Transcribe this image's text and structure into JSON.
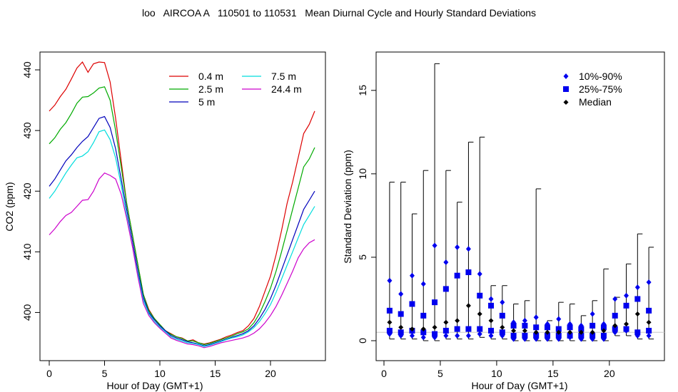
{
  "page": {
    "title": "loo   AIRCOA A   110501 to 110531   Mean Diurnal Cycle and Hourly Standard Deviations"
  },
  "chart_data": [
    {
      "type": "line",
      "xlabel": "Hour of Day (GMT+1)",
      "ylabel": "CO2 (ppm)",
      "xlim": [
        0,
        24
      ],
      "ylim": [
        393,
        442
      ],
      "xticks": [
        0,
        5,
        10,
        15,
        20
      ],
      "yticks": [
        400,
        410,
        420,
        430,
        440
      ],
      "grid": false,
      "legend": "top-right",
      "x": [
        0,
        0.5,
        1,
        1.5,
        2,
        2.5,
        3,
        3.5,
        4,
        4.5,
        5,
        5.5,
        6,
        6.5,
        7,
        7.5,
        8,
        8.5,
        9,
        9.5,
        10,
        10.5,
        11,
        11.5,
        12,
        12.5,
        13,
        13.5,
        14,
        14.5,
        15,
        15.5,
        16,
        16.5,
        17,
        17.5,
        18,
        18.5,
        19,
        19.5,
        20,
        20.5,
        21,
        21.5,
        22,
        22.5,
        23,
        23.5,
        24
      ],
      "series": [
        {
          "name": "0.4 m",
          "color": "#dd0000",
          "values": [
            433.2,
            434.2,
            435.6,
            436.8,
            438.5,
            440.3,
            441.3,
            439.6,
            441.0,
            441.3,
            441.2,
            438.0,
            432.0,
            425.0,
            418.0,
            413.0,
            408.0,
            403.0,
            400.5,
            399.0,
            398.0,
            397.0,
            396.5,
            396.0,
            395.8,
            395.3,
            395.5,
            395.0,
            394.8,
            395.0,
            395.3,
            395.6,
            396.0,
            396.3,
            396.7,
            397.0,
            397.8,
            399.0,
            401.0,
            403.5,
            406.0,
            409.5,
            413.5,
            418.0,
            421.5,
            425.5,
            429.5,
            431.0,
            433.2
          ]
        },
        {
          "name": "2.5 m",
          "color": "#00aa00",
          "values": [
            427.8,
            428.8,
            430.2,
            431.3,
            432.8,
            434.5,
            435.5,
            435.6,
            436.2,
            437.0,
            437.2,
            435.0,
            430.0,
            424.0,
            418.0,
            413.0,
            408.0,
            403.0,
            400.3,
            399.0,
            398.0,
            397.0,
            396.4,
            396.0,
            395.7,
            395.3,
            395.3,
            395.0,
            394.7,
            394.9,
            395.2,
            395.5,
            395.8,
            396.1,
            396.5,
            396.8,
            397.3,
            398.3,
            399.8,
            401.8,
            404.0,
            406.8,
            410.0,
            413.5,
            417.0,
            420.5,
            424.0,
            425.3,
            427.2
          ]
        },
        {
          "name": "5 m",
          "color": "#0000bb",
          "values": [
            420.8,
            422.0,
            423.5,
            425.0,
            426.0,
            427.2,
            428.2,
            429.0,
            430.5,
            432.0,
            432.3,
            430.5,
            427.0,
            422.0,
            417.0,
            412.0,
            407.0,
            402.5,
            400.0,
            398.8,
            397.8,
            397.0,
            396.2,
            395.8,
            395.5,
            395.2,
            395.0,
            394.8,
            394.5,
            394.7,
            395.0,
            395.3,
            395.6,
            395.9,
            396.2,
            396.5,
            397.0,
            397.8,
            399.0,
            400.5,
            402.3,
            404.5,
            407.0,
            409.5,
            412.0,
            414.5,
            417.0,
            418.5,
            420.0
          ]
        },
        {
          "name": "7.5 m",
          "color": "#00dddd",
          "values": [
            418.8,
            420.0,
            421.5,
            423.0,
            424.3,
            425.5,
            425.8,
            426.5,
            428.0,
            429.8,
            430.1,
            428.5,
            425.5,
            421.0,
            416.0,
            411.0,
            406.5,
            402.0,
            399.8,
            398.5,
            397.6,
            396.8,
            396.0,
            395.6,
            395.3,
            395.0,
            394.9,
            394.7,
            394.4,
            394.6,
            394.9,
            395.2,
            395.5,
            395.8,
            396.0,
            396.3,
            396.8,
            397.5,
            398.5,
            399.8,
            401.3,
            403.3,
            405.5,
            407.8,
            410.0,
            412.3,
            414.5,
            416.0,
            417.5
          ]
        },
        {
          "name": "24.4 m",
          "color": "#cc00cc",
          "values": [
            412.8,
            413.8,
            415.0,
            416.0,
            416.5,
            417.5,
            418.5,
            418.6,
            420.0,
            422.0,
            423.0,
            422.6,
            422.0,
            419.5,
            415.5,
            411.0,
            406.0,
            401.5,
            399.5,
            398.3,
            397.4,
            396.6,
            395.8,
            395.4,
            395.1,
            394.8,
            394.7,
            394.5,
            394.2,
            394.4,
            394.7,
            395.0,
            395.2,
            395.4,
            395.6,
            395.8,
            396.1,
            396.6,
            397.3,
            398.3,
            399.5,
            401.0,
            402.8,
            404.8,
            406.8,
            409.0,
            410.5,
            411.5,
            412.0
          ]
        }
      ]
    },
    {
      "type": "scatter",
      "xlabel": "Hour of Day (GMT+1)",
      "ylabel": "Standard Deviation (ppm)",
      "xlim": [
        0,
        24
      ],
      "ylim": [
        -0.6,
        17
      ],
      "xticks": [
        0,
        5,
        10,
        15,
        20
      ],
      "yticks": [
        0,
        5,
        10,
        15
      ],
      "grid": false,
      "legend": "top-right",
      "reference_line": 0.5,
      "series_labels": {
        "p10_90": "10%-90%",
        "p25_75": "25%-75%",
        "median": "Median"
      },
      "colors": {
        "quantile": "#0000ee",
        "median": "#000000"
      },
      "hours": [
        0.5,
        1.5,
        2.5,
        3.5,
        4.5,
        5.5,
        6.5,
        7.5,
        8.5,
        9.5,
        10.5,
        11.5,
        12.5,
        13.5,
        14.5,
        15.5,
        16.5,
        17.5,
        18.5,
        19.5,
        20.5,
        21.5,
        22.5,
        23.5
      ],
      "max": [
        9.5,
        9.5,
        7.6,
        10.2,
        16.6,
        10.2,
        8.3,
        11.9,
        12.2,
        3.3,
        3.3,
        2.2,
        2.4,
        9.1,
        1.2,
        2.3,
        2.2,
        1.5,
        2.4,
        4.3,
        2.6,
        4.6,
        6.4,
        5.6
      ],
      "p90": [
        3.6,
        2.8,
        3.9,
        3.4,
        5.7,
        4.7,
        5.6,
        5.5,
        4.0,
        2.5,
        2.3,
        1.1,
        1.2,
        1.4,
        1.0,
        1.3,
        1.0,
        0.9,
        1.6,
        1.0,
        2.5,
        2.7,
        3.2,
        3.5
      ],
      "p75": [
        1.8,
        1.6,
        2.2,
        1.5,
        2.3,
        3.1,
        3.9,
        4.1,
        2.7,
        2.1,
        1.5,
        0.9,
        0.9,
        0.8,
        0.8,
        0.7,
        0.8,
        0.7,
        0.9,
        0.8,
        1.5,
        2.1,
        2.5,
        1.8
      ],
      "median": [
        1.1,
        0.8,
        0.7,
        0.7,
        0.8,
        1.1,
        1.2,
        2.1,
        1.6,
        1.2,
        0.8,
        0.6,
        0.6,
        0.5,
        0.5,
        0.5,
        0.5,
        0.5,
        0.5,
        0.6,
        0.9,
        1.0,
        1.6,
        1.1
      ],
      "p25": [
        0.6,
        0.5,
        0.6,
        0.5,
        0.4,
        0.6,
        0.7,
        0.7,
        0.7,
        0.6,
        0.5,
        0.3,
        0.3,
        0.3,
        0.3,
        0.3,
        0.3,
        0.3,
        0.3,
        0.3,
        0.7,
        0.7,
        0.5,
        0.6
      ],
      "p10": [
        0.4,
        0.3,
        0.3,
        0.2,
        0.2,
        0.3,
        0.3,
        0.3,
        0.4,
        0.3,
        0.3,
        0.1,
        0.1,
        0.1,
        0.1,
        0.1,
        0.2,
        0.1,
        0.1,
        0.1,
        0.5,
        0.6,
        0.3,
        0.3
      ],
      "min": [
        0.1,
        0.1,
        0.1,
        0.0,
        0.0,
        0.1,
        0.1,
        0.1,
        0.2,
        0.1,
        0.1,
        0.0,
        0.0,
        0.0,
        0.0,
        0.0,
        0.0,
        0.0,
        0.0,
        0.0,
        0.3,
        0.3,
        0.1,
        0.1
      ]
    }
  ]
}
